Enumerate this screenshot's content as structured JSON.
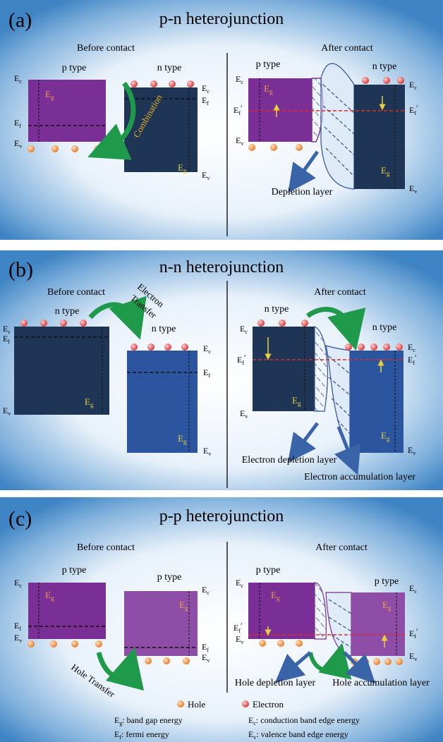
{
  "panels": [
    {
      "letter": "(a)",
      "title": "p-n heterojunction",
      "before": "Before contact",
      "after": "After contact",
      "left_type": "p type",
      "right_type": "n type",
      "arrow_label": "Combination",
      "after_left_type": "p type",
      "after_right_type": "n type",
      "layer_label": "Depletion layer"
    },
    {
      "letter": "(b)",
      "title": "n-n heterojunction",
      "before": "Before contact",
      "after": "After contact",
      "left_type": "n type",
      "right_type": "n type",
      "arrow_label_1": "Electron",
      "arrow_label_2": "Transfer",
      "after_left_type": "n type",
      "after_right_type": "n type",
      "layer_label_1": "Electron depletion layer",
      "layer_label_2": "Electron accumulation layer"
    },
    {
      "letter": "(c)",
      "title": "p-p heterojunction",
      "before": "Before contact",
      "after": "After contact",
      "left_type": "p type",
      "right_type": "p type",
      "arrow_label": "Hole Transfer",
      "after_left_type": "p type",
      "after_right_type": "p type",
      "layer_label_1": "Hole depletion layer",
      "layer_label_2": "Hole accumulation layer"
    }
  ],
  "labels": {
    "Ec": "E",
    "Ef": "E",
    "Ev": "E",
    "Eg": "E",
    "sub_c": "c",
    "sub_f": "f",
    "sub_v": "v",
    "sub_g": "g",
    "prime": "′"
  },
  "legend": {
    "hole": "Hole",
    "electron": "Electron",
    "eg_def": ": band gap energy",
    "ef_def": ": fermi energy",
    "ec_def": ": conduction band edge energy",
    "ev_def": ": valence band edge energy"
  },
  "colors": {
    "p_purple": "#7a2f96",
    "p_light": "#8e4ea8",
    "n_dark": "#1f3556",
    "n_blue": "#2c55a0",
    "electron": "#e04848",
    "hole": "#f08a38",
    "arrow_green": "#1f9a4a",
    "fermi_red": "#e02a2a",
    "eg_yellow": "#e8d040"
  }
}
